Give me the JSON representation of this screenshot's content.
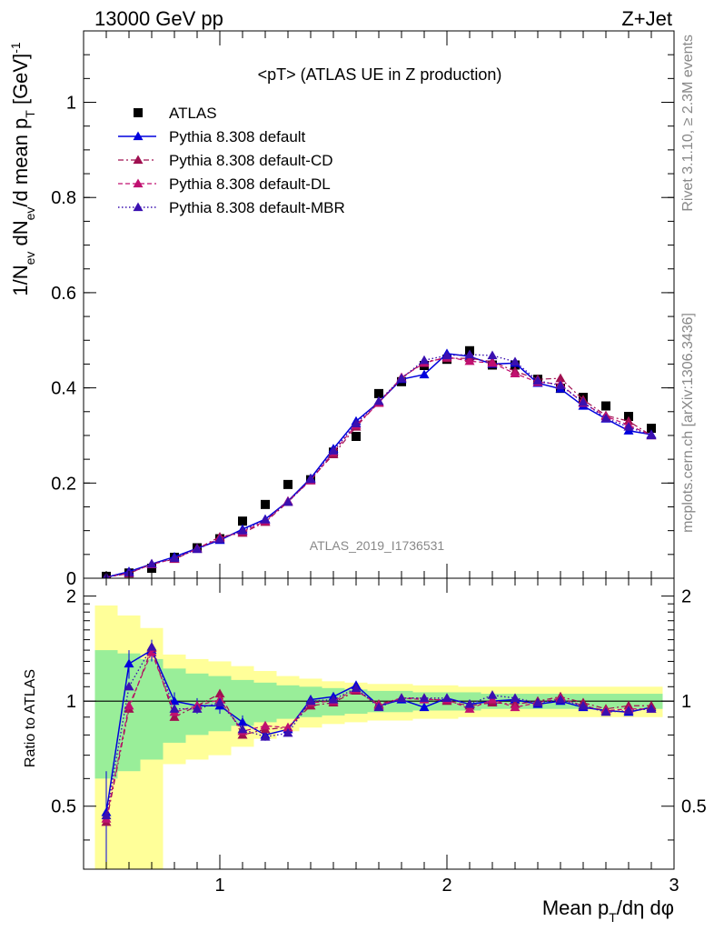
{
  "header": {
    "left": "13000 GeV pp",
    "right": "Z+Jet"
  },
  "plot_title": "<pT> (ATLAS UE in Z production)",
  "analysis_id": "ATLAS_2019_I1736531",
  "side_text": {
    "rivet": "Rivet 3.1.10, ≥ 2.3M events",
    "mcplots": "mcplots.cern.ch [arXiv:1306.3436]"
  },
  "colors": {
    "atlas": "#000000",
    "pythia_default": "#0000dd",
    "pythia_cd": "#a01050",
    "pythia_dl": "#c01070",
    "pythia_mbr": "#3a10b0",
    "band_inner": "#99ee99",
    "band_outer": "#ffff99"
  },
  "chart_data": [
    {
      "type": "line",
      "name": "main",
      "title": "<pT> (ATLAS UE in Z production)",
      "xlabel": "Mean pT/dη dφ",
      "ylabel": "1/Nev dNev/d mean pT [GeV]-1",
      "xlim": [
        0.4,
        3.0
      ],
      "ylim": [
        0,
        1.15
      ],
      "y_ticks": [
        0,
        0.2,
        0.4,
        0.6,
        0.8,
        1
      ],
      "y_tick_labels": [
        "0",
        "0.2",
        "0.4",
        "0.6",
        "0.8",
        "1"
      ],
      "grid": false,
      "legend_position": "top-left",
      "x": [
        0.5,
        0.6,
        0.7,
        0.8,
        0.9,
        1.0,
        1.1,
        1.2,
        1.3,
        1.4,
        1.5,
        1.6,
        1.7,
        1.8,
        1.9,
        2.0,
        2.1,
        2.2,
        2.3,
        2.4,
        2.5,
        2.6,
        2.7,
        2.8,
        2.9
      ],
      "series": [
        {
          "name": "ATLAS",
          "marker": "square",
          "values": [
            0.004,
            0.011,
            0.021,
            0.044,
            0.064,
            0.083,
            0.12,
            0.155,
            0.197,
            0.207,
            0.265,
            0.298,
            0.388,
            0.413,
            0.447,
            0.46,
            0.478,
            0.448,
            0.448,
            0.418,
            0.399,
            0.38,
            0.362,
            0.34,
            0.315
          ]
        },
        {
          "name": "Pythia 8.308 default",
          "style": "solid",
          "values": [
            0.002,
            0.014,
            0.03,
            0.045,
            0.063,
            0.08,
            0.103,
            0.124,
            0.162,
            0.21,
            0.272,
            0.33,
            0.37,
            0.418,
            0.428,
            0.472,
            0.466,
            0.45,
            0.452,
            0.41,
            0.398,
            0.362,
            0.335,
            0.31,
            0.302
          ],
          "err_high": [
            0.0012,
            0.0015,
            0.0022,
            0.0025,
            0.003,
            0.0035,
            0.004,
            0.0045,
            0.005,
            0.0055,
            0.006,
            0.0065,
            0.007,
            0.007,
            0.007,
            0.0075,
            0.0075,
            0.0075,
            0.007,
            0.007,
            0.007,
            0.0065,
            0.006,
            0.006,
            0.006
          ]
        },
        {
          "name": "Pythia 8.308 default-CD",
          "style": "dashdot",
          "values": [
            0.002,
            0.01,
            0.03,
            0.04,
            0.062,
            0.087,
            0.095,
            0.118,
            0.16,
            0.208,
            0.26,
            0.318,
            0.37,
            0.42,
            0.455,
            0.462,
            0.462,
            0.455,
            0.435,
            0.418,
            0.42,
            0.375,
            0.342,
            0.33,
            0.3
          ]
        },
        {
          "name": "Pythia 8.308 default-DL",
          "style": "dashed",
          "values": [
            0.002,
            0.011,
            0.029,
            0.041,
            0.062,
            0.084,
            0.098,
            0.12,
            0.162,
            0.205,
            0.265,
            0.322,
            0.368,
            0.422,
            0.452,
            0.465,
            0.456,
            0.452,
            0.43,
            0.412,
            0.408,
            0.368,
            0.34,
            0.322,
            0.3
          ]
        },
        {
          "name": "Pythia 8.308 default-MBR",
          "style": "dotted",
          "values": [
            0.002,
            0.012,
            0.03,
            0.042,
            0.061,
            0.082,
            0.1,
            0.123,
            0.16,
            0.208,
            0.268,
            0.325,
            0.372,
            0.42,
            0.458,
            0.468,
            0.47,
            0.468,
            0.455,
            0.415,
            0.405,
            0.37,
            0.336,
            0.318,
            0.3
          ]
        }
      ]
    },
    {
      "type": "line",
      "name": "ratio",
      "xlabel": "Mean pT/dη dφ",
      "ylabel": "Ratio to ATLAS",
      "xlim": [
        0.4,
        3.0
      ],
      "ylim": [
        0.33,
        2.25
      ],
      "y_ticks": [
        0.5,
        1,
        2
      ],
      "y_tick_labels": [
        "0.5",
        "1",
        "2"
      ],
      "x_ticks": [
        1,
        2,
        3
      ],
      "x_tick_labels": [
        "1",
        "2",
        "3"
      ],
      "grid": false,
      "reference_line": 1,
      "x": [
        0.5,
        0.6,
        0.7,
        0.8,
        0.9,
        1.0,
        1.1,
        1.2,
        1.3,
        1.4,
        1.5,
        1.6,
        1.7,
        1.8,
        1.9,
        2.0,
        2.1,
        2.2,
        2.3,
        2.4,
        2.5,
        2.6,
        2.7,
        2.8,
        2.9
      ],
      "bands": {
        "edges": [
          0.45,
          0.55,
          0.65,
          0.75,
          0.85,
          0.95,
          1.05,
          1.15,
          1.25,
          1.35,
          1.45,
          1.55,
          1.65,
          1.75,
          1.85,
          1.95,
          2.05,
          2.15,
          2.25,
          2.35,
          2.45,
          2.55,
          2.65,
          2.75,
          2.85,
          2.95
        ],
        "inner_low": [
          0.6,
          0.63,
          0.68,
          0.76,
          0.8,
          0.82,
          0.85,
          0.87,
          0.89,
          0.9,
          0.91,
          0.92,
          0.93,
          0.93,
          0.94,
          0.94,
          0.94,
          0.95,
          0.95,
          0.95,
          0.95,
          0.95,
          0.95,
          0.95,
          0.95
        ],
        "inner_high": [
          1.4,
          1.37,
          1.32,
          1.24,
          1.2,
          1.18,
          1.15,
          1.13,
          1.11,
          1.1,
          1.09,
          1.08,
          1.07,
          1.07,
          1.06,
          1.06,
          1.06,
          1.05,
          1.05,
          1.05,
          1.05,
          1.05,
          1.05,
          1.05,
          1.05
        ],
        "outer_low": [
          0.33,
          0.33,
          0.33,
          0.66,
          0.68,
          0.7,
          0.74,
          0.78,
          0.82,
          0.84,
          0.86,
          0.87,
          0.88,
          0.88,
          0.89,
          0.89,
          0.9,
          0.9,
          0.9,
          0.9,
          0.9,
          0.9,
          0.9,
          0.9,
          0.9
        ],
        "outer_high": [
          1.88,
          1.76,
          1.62,
          1.36,
          1.32,
          1.3,
          1.26,
          1.22,
          1.18,
          1.16,
          1.14,
          1.13,
          1.12,
          1.12,
          1.11,
          1.11,
          1.1,
          1.1,
          1.1,
          1.1,
          1.1,
          1.1,
          1.1,
          1.1,
          1.1
        ]
      },
      "series": [
        {
          "name": "Pythia 8.308 default",
          "style": "solid",
          "values": [
            0.48,
            1.28,
            1.4,
            1.0,
            0.97,
            0.97,
            0.87,
            0.8,
            0.83,
            1.01,
            1.03,
            1.11,
            0.97,
            1.01,
            0.96,
            1.02,
            0.98,
            1.0,
            1.01,
            0.98,
            1.0,
            0.96,
            0.94,
            0.93,
            0.96
          ],
          "err_high": [
            0.15,
            0.12,
            0.1,
            0.06,
            0.05,
            0.05,
            0.04,
            0.03,
            0.03,
            0.03,
            0.03,
            0.02,
            0.02,
            0.02,
            0.02,
            0.02,
            0.02,
            0.02,
            0.02,
            0.02,
            0.02,
            0.02,
            0.02,
            0.02,
            0.02
          ]
        },
        {
          "name": "Pythia 8.308 default-CD",
          "style": "dashdot",
          "values": [
            0.45,
            0.95,
            1.42,
            0.9,
            0.97,
            1.05,
            0.8,
            0.83,
            0.84,
            0.97,
            0.99,
            1.07,
            0.98,
            1.02,
            1.02,
            1.0,
            0.97,
            0.99,
            0.98,
            1.0,
            1.03,
            0.99,
            0.95,
            0.97,
            0.97
          ]
        },
        {
          "name": "Pythia 8.308 default-DL",
          "style": "dashed",
          "values": [
            0.46,
            0.97,
            1.38,
            0.93,
            0.97,
            1.01,
            0.82,
            0.85,
            0.84,
            0.99,
            1.0,
            1.08,
            0.97,
            1.02,
            1.01,
            1.01,
            0.95,
            1.01,
            0.96,
            0.99,
            1.02,
            0.97,
            0.94,
            0.95,
            0.95
          ]
        },
        {
          "name": "Pythia 8.308 default-MBR",
          "style": "dotted",
          "values": [
            0.47,
            1.1,
            1.43,
            0.95,
            0.95,
            0.99,
            0.83,
            0.79,
            0.81,
            1.0,
            1.01,
            1.09,
            0.96,
            1.02,
            1.02,
            1.02,
            0.98,
            1.04,
            1.02,
            0.99,
            1.01,
            0.97,
            0.93,
            0.94,
            0.95
          ]
        }
      ]
    }
  ]
}
